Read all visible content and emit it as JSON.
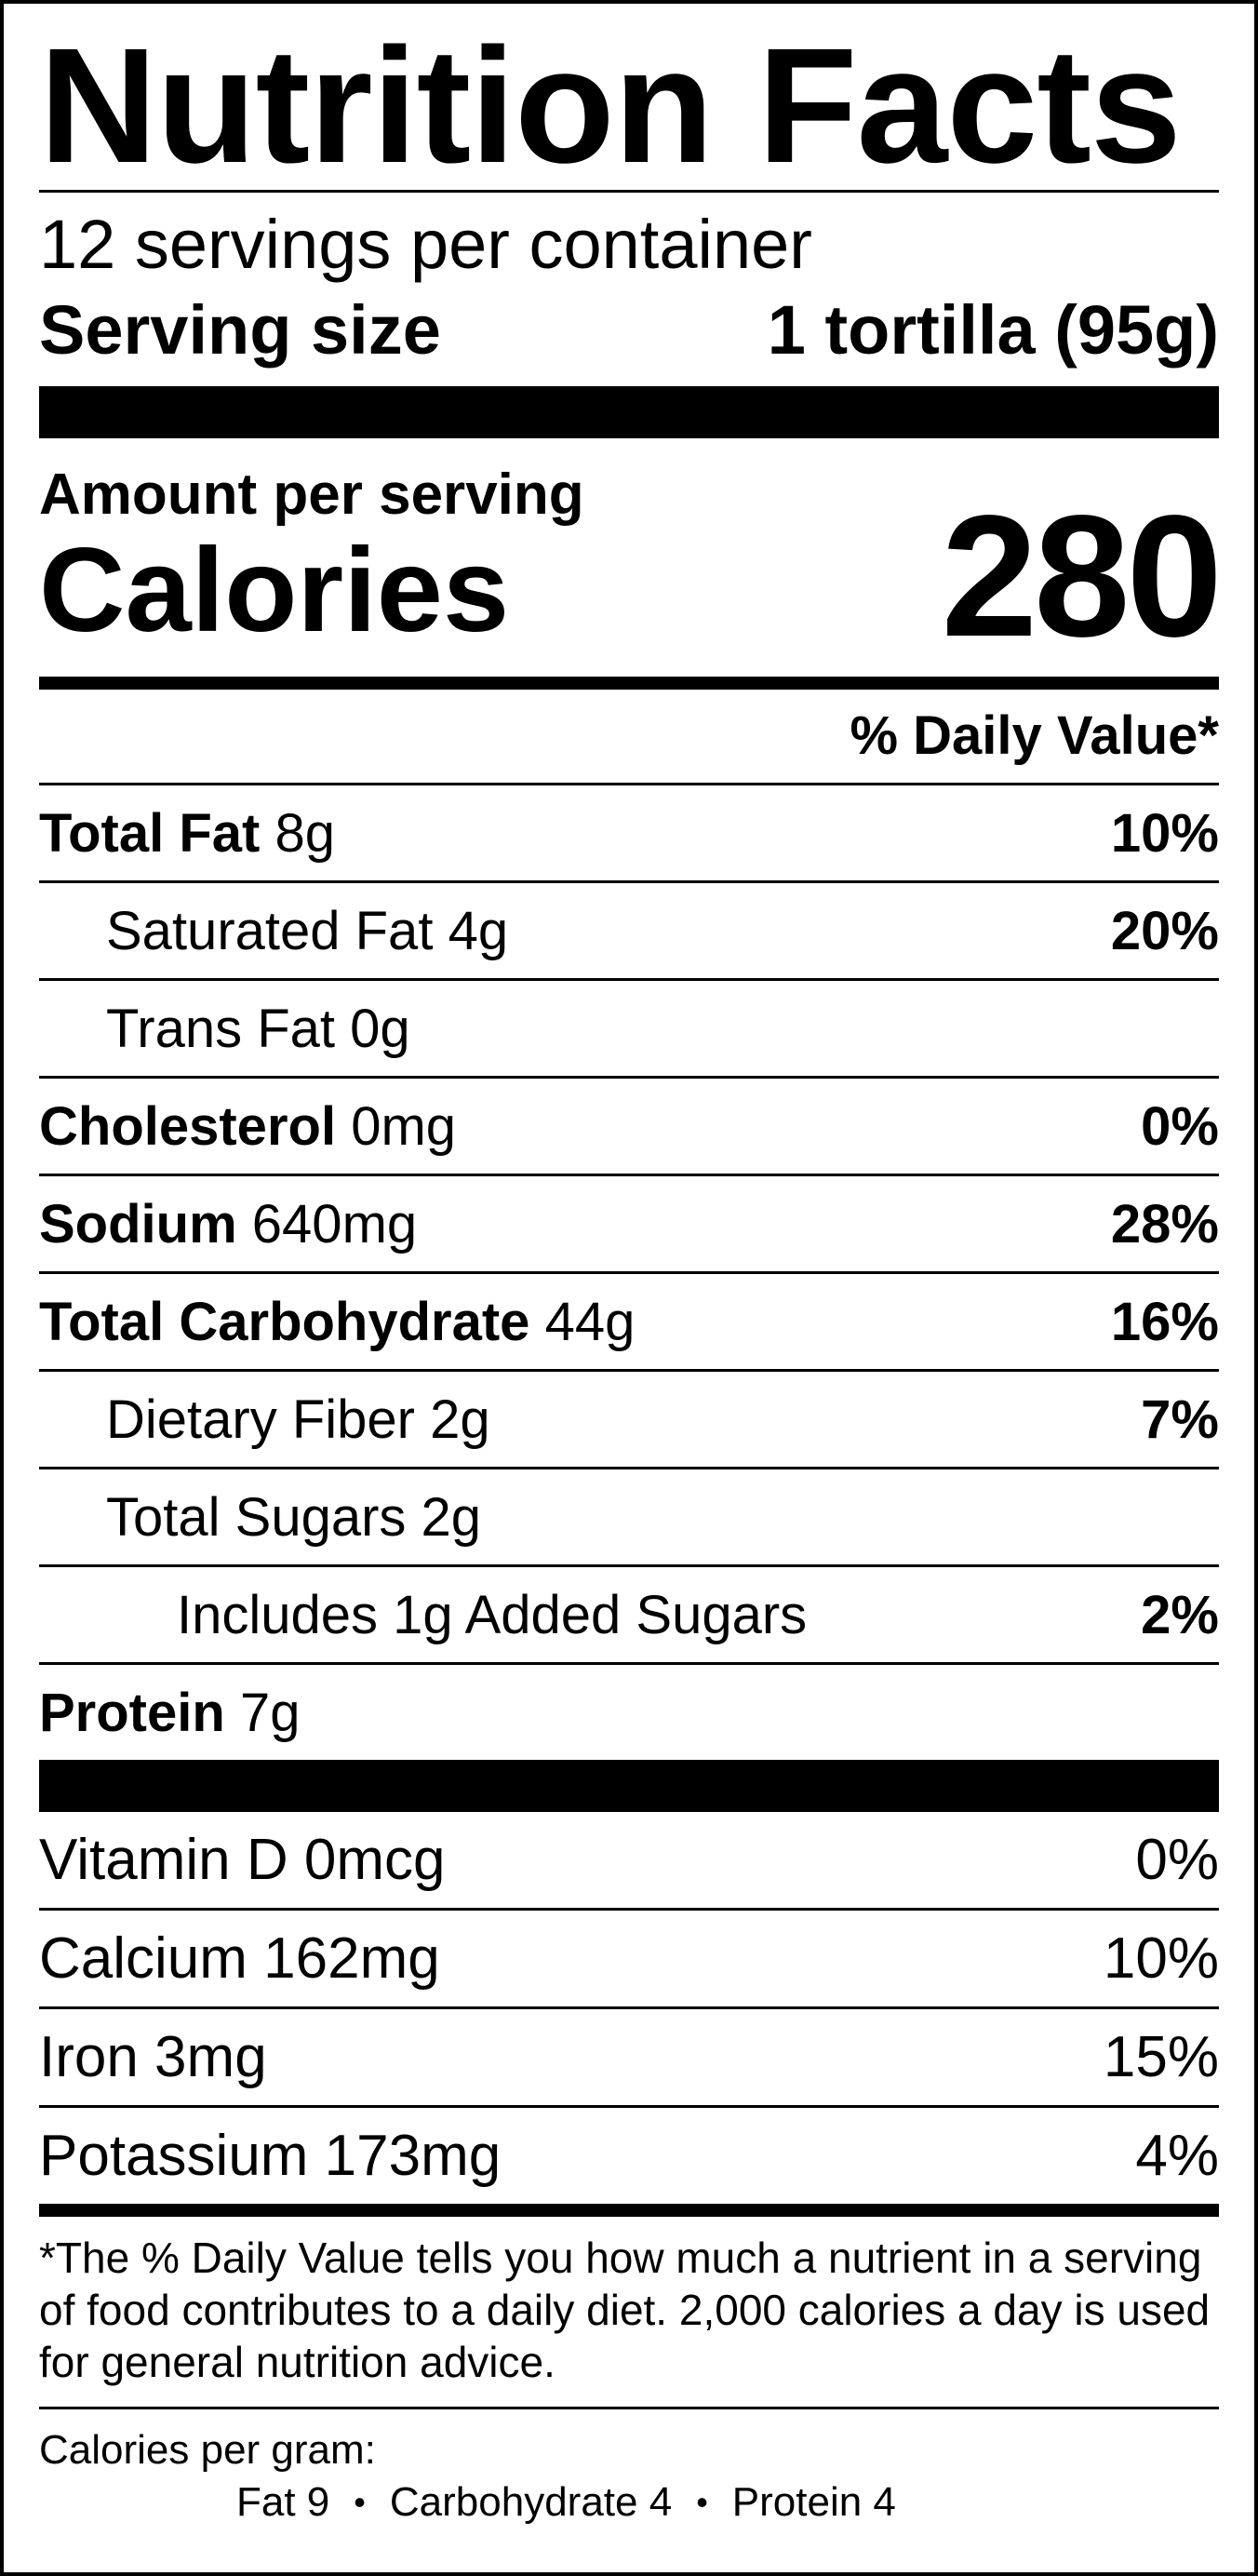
{
  "title": "Nutrition Facts",
  "servings_per_container": "12 servings per container",
  "serving_size": {
    "label": "Serving size",
    "value": "1 tortilla (95g)"
  },
  "amount_per_serving": "Amount per serving",
  "calories": {
    "label": "Calories",
    "value": "280"
  },
  "daily_value_header": "% Daily Value*",
  "nutrients": [
    {
      "name": "Total Fat",
      "amount": "8g",
      "dv": "10%"
    },
    {
      "name": "Saturated Fat",
      "amount": "4g",
      "dv": "20%"
    },
    {
      "name": "Trans Fat",
      "amount": "0g",
      "dv": ""
    },
    {
      "name": "Cholesterol",
      "amount": "0mg",
      "dv": "0%"
    },
    {
      "name": "Sodium",
      "amount": "640mg",
      "dv": "28%"
    },
    {
      "name": "Total Carbohydrate",
      "amount": "44g",
      "dv": "16%"
    },
    {
      "name": "Dietary Fiber",
      "amount": "2g",
      "dv": "7%"
    },
    {
      "name": "Total Sugars",
      "amount": "2g",
      "dv": ""
    },
    {
      "name": "Includes 1g Added Sugars",
      "amount": "",
      "dv": "2%"
    },
    {
      "name": "Protein",
      "amount": "7g",
      "dv": ""
    }
  ],
  "vitamins": [
    {
      "text": "Vitamin D 0mcg",
      "dv": "0%"
    },
    {
      "text": "Calcium 162mg",
      "dv": "10%"
    },
    {
      "text": "Iron 3mg",
      "dv": "15%"
    },
    {
      "text": "Potassium 173mg",
      "dv": "4%"
    }
  ],
  "footnote": "*The % Daily Value tells you how much a nutrient in a serving of food contributes to a daily diet. 2,000 calories a day is used for general nutrition advice.",
  "calories_per_gram": {
    "label": "Calories per gram:",
    "fat": "Fat 9",
    "carbohydrate": "Carbohydrate 4",
    "protein": "Protein 4",
    "separator": "•"
  }
}
